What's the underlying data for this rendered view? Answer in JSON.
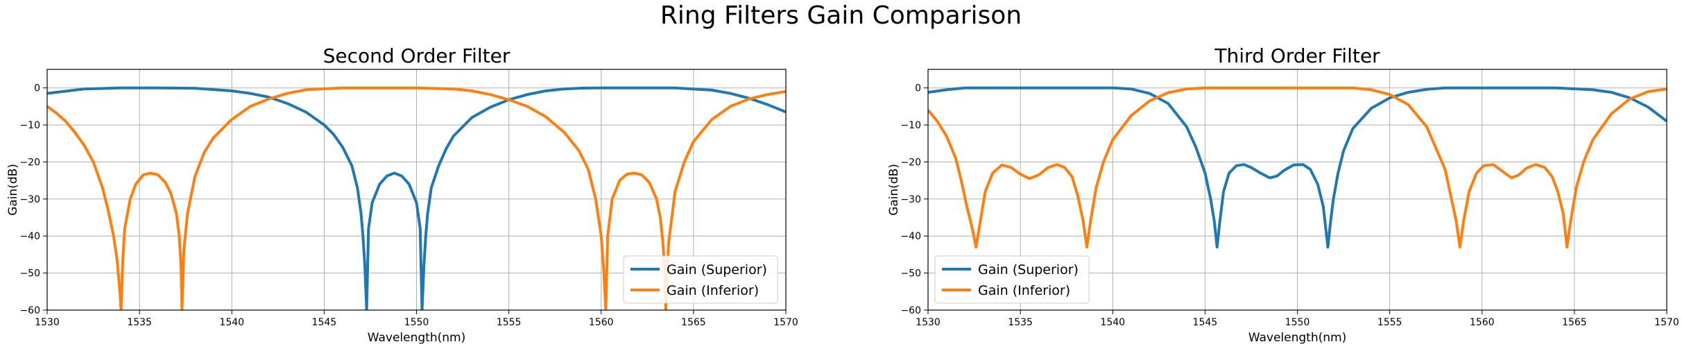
{
  "figure": {
    "title": "Ring Filters Gain Comparison"
  },
  "colors": {
    "superior": "#1f77b4",
    "inferior": "#ff7f0e",
    "grid": "#b0b0b0",
    "axis": "#000000"
  },
  "chart_data": [
    {
      "type": "line",
      "title": "Second Order Filter",
      "xlabel": "Wavelength(nm)",
      "ylabel": "Gain(dB)",
      "xlim": [
        1530,
        1570
      ],
      "ylim": [
        -60,
        5
      ],
      "xticks": [
        1530,
        1535,
        1540,
        1545,
        1550,
        1555,
        1560,
        1565,
        1570
      ],
      "yticks": [
        0,
        -10,
        -20,
        -30,
        -40,
        -50,
        -60
      ],
      "grid": true,
      "legend": "lower-right",
      "series": [
        {
          "name": "Gain (Superior)",
          "color": "#1f77b4",
          "x": [
            1530,
            1532,
            1534,
            1536,
            1538,
            1540,
            1541,
            1542,
            1543,
            1544,
            1545,
            1545.5,
            1546,
            1546.5,
            1546.8,
            1547.0,
            1547.1,
            1547.2,
            1547.3,
            1547.4,
            1547.6,
            1548,
            1548.4,
            1548.8,
            1549.2,
            1549.6,
            1550.0,
            1550.2,
            1550.3,
            1550.4,
            1550.5,
            1550.6,
            1550.8,
            1551.2,
            1551.6,
            1552,
            1553,
            1554,
            1555,
            1556,
            1557,
            1558,
            1559,
            1560,
            1562,
            1564,
            1566,
            1567,
            1568,
            1569,
            1570
          ],
          "y": [
            -1.5,
            -0.3,
            0,
            0,
            -0.1,
            -0.8,
            -1.5,
            -2.5,
            -4.2,
            -6.5,
            -10,
            -12.5,
            -16,
            -21,
            -27,
            -34,
            -40,
            -48,
            -60,
            -38,
            -31,
            -26,
            -23.8,
            -23,
            -23.8,
            -26,
            -31,
            -38,
            -60,
            -48,
            -40,
            -34,
            -27,
            -21,
            -16.5,
            -13,
            -8,
            -5.2,
            -3.2,
            -1.8,
            -0.8,
            -0.3,
            -0.05,
            0,
            0,
            0,
            -0.6,
            -1.5,
            -2.8,
            -4.5,
            -6.5
          ]
        },
        {
          "name": "Gain (Inferior)",
          "color": "#ff7f0e",
          "x": [
            1530,
            1530.5,
            1531,
            1531.5,
            1532,
            1532.5,
            1533,
            1533.3,
            1533.6,
            1533.8,
            1533.95,
            1534.0,
            1534.1,
            1534.2,
            1534.5,
            1534.8,
            1535.2,
            1535.6,
            1536.0,
            1536.4,
            1536.7,
            1537.0,
            1537.15,
            1537.25,
            1537.3,
            1537.4,
            1537.6,
            1538,
            1538.5,
            1539,
            1540,
            1541,
            1542,
            1543,
            1544,
            1546,
            1548,
            1550,
            1552,
            1553,
            1554,
            1555,
            1556,
            1557,
            1558,
            1558.8,
            1559.3,
            1559.7,
            1560.0,
            1560.15,
            1560.25,
            1560.35,
            1560.6,
            1561.0,
            1561.4,
            1561.8,
            1562.2,
            1562.6,
            1563.0,
            1563.2,
            1563.35,
            1563.45,
            1563.5,
            1563.65,
            1564.0,
            1564.5,
            1565,
            1566,
            1567,
            1568,
            1569,
            1570
          ],
          "y": [
            -5,
            -6.8,
            -9,
            -12,
            -15.5,
            -20,
            -27,
            -33,
            -40,
            -47,
            -56,
            -60,
            -46,
            -38,
            -30,
            -26,
            -23.5,
            -23,
            -23.5,
            -25.5,
            -28.5,
            -34,
            -40,
            -48,
            -60,
            -44,
            -34,
            -24,
            -17.5,
            -13.5,
            -8.5,
            -5,
            -3,
            -1.5,
            -0.5,
            0,
            0,
            0,
            -0.3,
            -0.8,
            -1.8,
            -3.2,
            -5,
            -7.8,
            -12,
            -17,
            -22,
            -30,
            -40,
            -50,
            -60,
            -40,
            -30,
            -25,
            -23.3,
            -23,
            -23.5,
            -25.5,
            -30,
            -35,
            -42,
            -50,
            -60,
            -42,
            -28,
            -20,
            -14.5,
            -8.5,
            -5,
            -3,
            -1.8,
            -1
          ]
        }
      ]
    },
    {
      "type": "line",
      "title": "Third Order Filter",
      "xlabel": "Wavelength(nm)",
      "ylabel": "Gain(dB)",
      "xlim": [
        1530,
        1570
      ],
      "ylim": [
        -60,
        5
      ],
      "xticks": [
        1530,
        1535,
        1540,
        1545,
        1550,
        1555,
        1560,
        1565,
        1570
      ],
      "yticks": [
        0,
        -10,
        -20,
        -30,
        -40,
        -50,
        -60
      ],
      "grid": true,
      "legend": "lower-left",
      "series": [
        {
          "name": "Gain (Superior)",
          "color": "#1f77b4",
          "x": [
            1530,
            1531,
            1532,
            1534,
            1536,
            1538,
            1540,
            1541,
            1542,
            1543,
            1544,
            1544.5,
            1545,
            1545.3,
            1545.5,
            1545.65,
            1545.8,
            1546.0,
            1546.3,
            1546.7,
            1547.1,
            1547.5,
            1548.0,
            1548.5,
            1548.9,
            1549.3,
            1549.8,
            1550.3,
            1550.7,
            1551.1,
            1551.4,
            1551.65,
            1551.8,
            1551.95,
            1552.2,
            1552.5,
            1553,
            1554,
            1555,
            1556,
            1557,
            1558,
            1560,
            1562,
            1564,
            1566,
            1567,
            1568,
            1569,
            1570
          ],
          "y": [
            -1.2,
            -0.5,
            0,
            0,
            0,
            0,
            0,
            -0.3,
            -1.5,
            -4.2,
            -10.5,
            -16,
            -23,
            -30,
            -36,
            -43,
            -36,
            -28,
            -23,
            -21,
            -20.7,
            -21.5,
            -23,
            -24.3,
            -23.8,
            -22.2,
            -20.8,
            -20.7,
            -22,
            -26,
            -32,
            -43,
            -36,
            -30,
            -23,
            -17,
            -11,
            -5.5,
            -2.7,
            -1.2,
            -0.4,
            0,
            0,
            0,
            0,
            -0.5,
            -1.2,
            -2.7,
            -5.2,
            -9
          ]
        },
        {
          "name": "Gain (Inferior)",
          "color": "#ff7f0e",
          "x": [
            1530,
            1530.5,
            1531,
            1531.5,
            1531.8,
            1532.1,
            1532.4,
            1532.6,
            1532.8,
            1533.1,
            1533.5,
            1534,
            1534.5,
            1535,
            1535.5,
            1536,
            1536.5,
            1537,
            1537.4,
            1537.8,
            1538.1,
            1538.4,
            1538.6,
            1538.8,
            1539.1,
            1539.5,
            1540,
            1541,
            1542,
            1543,
            1544,
            1545,
            1550,
            1553,
            1554,
            1555,
            1556,
            1557,
            1558,
            1558.3,
            1558.6,
            1558.8,
            1559.0,
            1559.3,
            1559.7,
            1560.1,
            1560.6,
            1561.1,
            1561.6,
            1562.0,
            1562.4,
            1562.9,
            1563.4,
            1563.8,
            1564.1,
            1564.4,
            1564.6,
            1564.8,
            1565.1,
            1565.5,
            1566,
            1567,
            1568,
            1569,
            1570
          ],
          "y": [
            -6,
            -9,
            -13,
            -19,
            -25,
            -32,
            -38,
            -43,
            -37,
            -28,
            -23,
            -20.8,
            -21.5,
            -23.3,
            -24.5,
            -23.5,
            -21.5,
            -20.7,
            -21.5,
            -24,
            -29,
            -36,
            -43,
            -36,
            -27,
            -20,
            -14,
            -7.5,
            -3.5,
            -1.3,
            -0.3,
            0,
            0,
            0,
            -0.5,
            -1.8,
            -4.5,
            -10.5,
            -22,
            -29,
            -36,
            -43,
            -36,
            -28,
            -23,
            -21,
            -20.7,
            -22.5,
            -24.3,
            -23.5,
            -21.7,
            -20.7,
            -21.5,
            -24,
            -28,
            -34,
            -43,
            -36,
            -27,
            -20,
            -14,
            -7,
            -3,
            -1,
            -0.3
          ]
        }
      ]
    }
  ]
}
